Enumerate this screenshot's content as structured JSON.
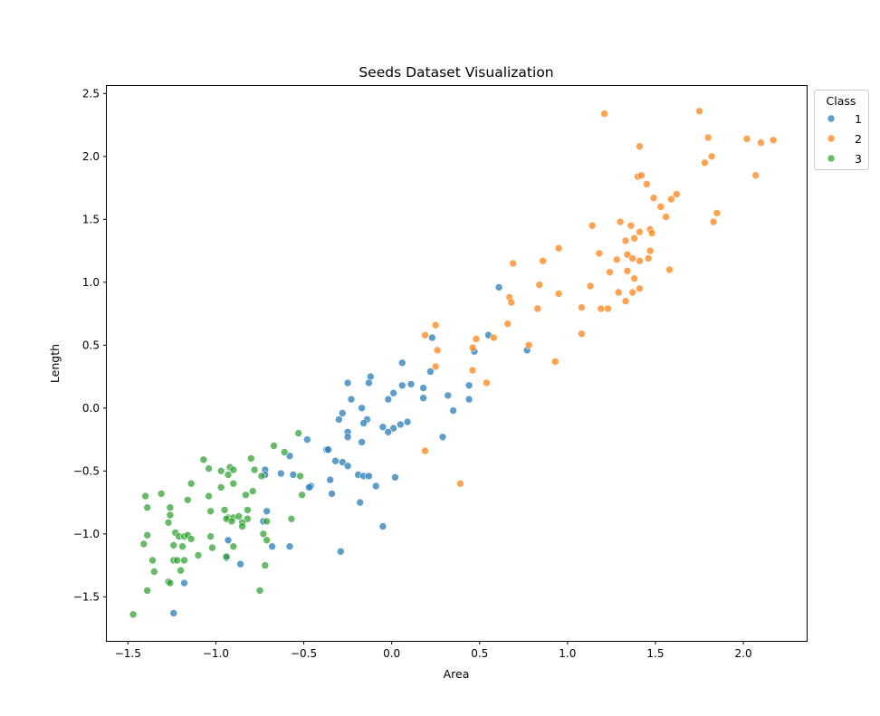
{
  "chart_data": {
    "type": "scatter",
    "title": "Seeds Dataset Visualization",
    "xlabel": "Area",
    "ylabel": "Length",
    "xlim": [
      -1.62,
      2.36
    ],
    "ylim": [
      -1.85,
      2.56
    ],
    "xticks": [
      -1.5,
      -1.0,
      -0.5,
      0.0,
      0.5,
      1.0,
      1.5,
      2.0
    ],
    "yticks": [
      -1.5,
      -1.0,
      -0.5,
      0.0,
      0.5,
      1.0,
      1.5,
      2.0,
      2.5
    ],
    "grid": false,
    "legend": {
      "title": "Class",
      "placement": "upper right, outside plot"
    },
    "series": [
      {
        "name": "1",
        "color": "#1f77b4",
        "points": [
          [
            0.61,
            0.96
          ],
          [
            0.55,
            0.58
          ],
          [
            0.23,
            0.56
          ],
          [
            0.77,
            0.46
          ],
          [
            0.47,
            0.45
          ],
          [
            0.06,
            0.36
          ],
          [
            0.11,
            0.19
          ],
          [
            0.18,
            0.16
          ],
          [
            0.06,
            0.18
          ],
          [
            0.22,
            0.29
          ],
          [
            -0.12,
            0.25
          ],
          [
            -0.25,
            0.2
          ],
          [
            -0.13,
            0.2
          ],
          [
            0.01,
            0.12
          ],
          [
            -0.02,
            0.07
          ],
          [
            0.18,
            0.08
          ],
          [
            0.32,
            0.1
          ],
          [
            0.44,
            0.18
          ],
          [
            0.44,
            0.07
          ],
          [
            0.35,
            -0.02
          ],
          [
            -0.23,
            0.07
          ],
          [
            -0.17,
            0.0
          ],
          [
            -0.28,
            -0.04
          ],
          [
            -0.3,
            -0.09
          ],
          [
            -0.14,
            -0.09
          ],
          [
            -0.16,
            -0.12
          ],
          [
            0.05,
            -0.13
          ],
          [
            0.09,
            -0.11
          ],
          [
            -0.05,
            -0.15
          ],
          [
            0.01,
            -0.16
          ],
          [
            -0.02,
            -0.19
          ],
          [
            0.29,
            -0.23
          ],
          [
            -0.25,
            -0.19
          ],
          [
            -0.25,
            -0.23
          ],
          [
            -0.17,
            -0.27
          ],
          [
            -0.48,
            -0.25
          ],
          [
            -0.37,
            -0.33
          ],
          [
            -0.36,
            -0.33
          ],
          [
            -0.32,
            -0.42
          ],
          [
            -0.28,
            -0.43
          ],
          [
            -0.25,
            -0.46
          ],
          [
            -0.58,
            -0.38
          ],
          [
            -0.72,
            -0.49
          ],
          [
            -0.72,
            -0.53
          ],
          [
            -0.63,
            -0.52
          ],
          [
            -0.56,
            -0.53
          ],
          [
            -0.19,
            -0.53
          ],
          [
            -0.16,
            -0.54
          ],
          [
            -0.13,
            -0.54
          ],
          [
            0.02,
            -0.55
          ],
          [
            -0.35,
            -0.57
          ],
          [
            -0.46,
            -0.62
          ],
          [
            -0.47,
            -0.63
          ],
          [
            -0.09,
            -0.62
          ],
          [
            -0.34,
            -0.68
          ],
          [
            -0.18,
            -0.75
          ],
          [
            -0.71,
            -0.82
          ],
          [
            -0.73,
            -0.9
          ],
          [
            -0.05,
            -0.94
          ],
          [
            -0.93,
            -1.05
          ],
          [
            -0.58,
            -1.1
          ],
          [
            -0.68,
            -1.1
          ],
          [
            -0.29,
            -1.14
          ],
          [
            -0.94,
            -1.19
          ],
          [
            -0.86,
            -1.24
          ],
          [
            -1.18,
            -1.39
          ],
          [
            -1.24,
            -1.63
          ]
        ]
      },
      {
        "name": "2",
        "color": "#ff7f0e",
        "points": [
          [
            1.75,
            2.36
          ],
          [
            1.21,
            2.34
          ],
          [
            2.17,
            2.13
          ],
          [
            2.02,
            2.14
          ],
          [
            2.1,
            2.11
          ],
          [
            1.8,
            2.15
          ],
          [
            1.41,
            2.08
          ],
          [
            1.82,
            2.0
          ],
          [
            1.78,
            1.95
          ],
          [
            1.4,
            1.84
          ],
          [
            1.42,
            1.85
          ],
          [
            2.07,
            1.85
          ],
          [
            1.45,
            1.78
          ],
          [
            1.62,
            1.7
          ],
          [
            1.49,
            1.67
          ],
          [
            1.59,
            1.66
          ],
          [
            1.53,
            1.6
          ],
          [
            1.85,
            1.55
          ],
          [
            1.56,
            1.52
          ],
          [
            1.83,
            1.48
          ],
          [
            1.3,
            1.48
          ],
          [
            1.36,
            1.45
          ],
          [
            1.14,
            1.45
          ],
          [
            1.47,
            1.42
          ],
          [
            1.48,
            1.39
          ],
          [
            1.41,
            1.4
          ],
          [
            1.38,
            1.35
          ],
          [
            1.33,
            1.33
          ],
          [
            0.95,
            1.27
          ],
          [
            1.47,
            1.25
          ],
          [
            1.18,
            1.23
          ],
          [
            1.34,
            1.22
          ],
          [
            1.28,
            1.18
          ],
          [
            1.37,
            1.19
          ],
          [
            1.41,
            1.17
          ],
          [
            1.46,
            1.19
          ],
          [
            0.69,
            1.15
          ],
          [
            0.86,
            1.17
          ],
          [
            1.24,
            1.08
          ],
          [
            1.34,
            1.09
          ],
          [
            1.58,
            1.1
          ],
          [
            1.38,
            1.03
          ],
          [
            1.13,
            0.97
          ],
          [
            0.84,
            0.98
          ],
          [
            1.29,
            0.92
          ],
          [
            1.41,
            0.95
          ],
          [
            1.37,
            0.92
          ],
          [
            0.95,
            0.91
          ],
          [
            0.67,
            0.88
          ],
          [
            0.68,
            0.84
          ],
          [
            1.33,
            0.85
          ],
          [
            1.08,
            0.8
          ],
          [
            1.19,
            0.79
          ],
          [
            1.23,
            0.79
          ],
          [
            0.83,
            0.79
          ],
          [
            0.66,
            0.67
          ],
          [
            0.25,
            0.66
          ],
          [
            0.19,
            0.58
          ],
          [
            1.08,
            0.59
          ],
          [
            0.58,
            0.56
          ],
          [
            0.48,
            0.55
          ],
          [
            0.78,
            0.5
          ],
          [
            0.46,
            0.48
          ],
          [
            0.26,
            0.46
          ],
          [
            0.93,
            0.37
          ],
          [
            0.25,
            0.33
          ],
          [
            0.46,
            0.3
          ],
          [
            0.54,
            0.2
          ],
          [
            0.19,
            -0.34
          ],
          [
            0.39,
            -0.6
          ]
        ]
      },
      {
        "name": "3",
        "color": "#2ca02c",
        "points": [
          [
            -0.53,
            -0.2
          ],
          [
            -0.67,
            -0.3
          ],
          [
            -0.61,
            -0.35
          ],
          [
            -0.8,
            -0.4
          ],
          [
            -1.07,
            -0.41
          ],
          [
            -1.04,
            -0.48
          ],
          [
            -0.92,
            -0.47
          ],
          [
            -0.9,
            -0.49
          ],
          [
            -0.97,
            -0.5
          ],
          [
            -0.78,
            -0.49
          ],
          [
            -0.93,
            -0.53
          ],
          [
            -0.74,
            -0.54
          ],
          [
            -0.52,
            -0.54
          ],
          [
            -1.14,
            -0.6
          ],
          [
            -0.9,
            -0.6
          ],
          [
            -0.97,
            -0.63
          ],
          [
            -0.79,
            -0.66
          ],
          [
            -1.31,
            -0.68
          ],
          [
            -1.4,
            -0.7
          ],
          [
            -1.04,
            -0.7
          ],
          [
            -0.83,
            -0.69
          ],
          [
            -0.51,
            -0.69
          ],
          [
            -1.16,
            -0.73
          ],
          [
            -1.39,
            -0.79
          ],
          [
            -1.26,
            -0.79
          ],
          [
            -1.03,
            -0.82
          ],
          [
            -0.95,
            -0.81
          ],
          [
            -0.82,
            -0.81
          ],
          [
            -1.26,
            -0.85
          ],
          [
            -0.93,
            -0.87
          ],
          [
            -0.9,
            -0.87
          ],
          [
            -0.87,
            -0.86
          ],
          [
            -0.94,
            -0.88
          ],
          [
            -0.82,
            -0.88
          ],
          [
            -0.57,
            -0.88
          ],
          [
            -1.27,
            -0.91
          ],
          [
            -0.91,
            -0.9
          ],
          [
            -0.85,
            -0.91
          ],
          [
            -0.71,
            -0.9
          ],
          [
            -0.85,
            -0.94
          ],
          [
            -1.23,
            -0.99
          ],
          [
            -1.39,
            -1.01
          ],
          [
            -1.21,
            -1.02
          ],
          [
            -1.18,
            -1.02
          ],
          [
            -1.16,
            -1.01
          ],
          [
            -1.14,
            -1.04
          ],
          [
            -1.03,
            -1.02
          ],
          [
            -0.73,
            -1.0
          ],
          [
            -0.71,
            -1.05
          ],
          [
            -1.41,
            -1.08
          ],
          [
            -1.24,
            -1.09
          ],
          [
            -1.19,
            -1.1
          ],
          [
            -1.02,
            -1.11
          ],
          [
            -0.9,
            -1.1
          ],
          [
            -1.1,
            -1.17
          ],
          [
            -1.36,
            -1.21
          ],
          [
            -1.24,
            -1.21
          ],
          [
            -1.22,
            -1.21
          ],
          [
            -1.18,
            -1.21
          ],
          [
            -0.94,
            -1.18
          ],
          [
            -0.72,
            -1.25
          ],
          [
            -1.35,
            -1.3
          ],
          [
            -1.2,
            -1.29
          ],
          [
            -1.27,
            -1.38
          ],
          [
            -1.26,
            -1.39
          ],
          [
            -1.39,
            -1.45
          ],
          [
            -0.75,
            -1.45
          ],
          [
            -1.47,
            -1.64
          ]
        ]
      }
    ]
  }
}
